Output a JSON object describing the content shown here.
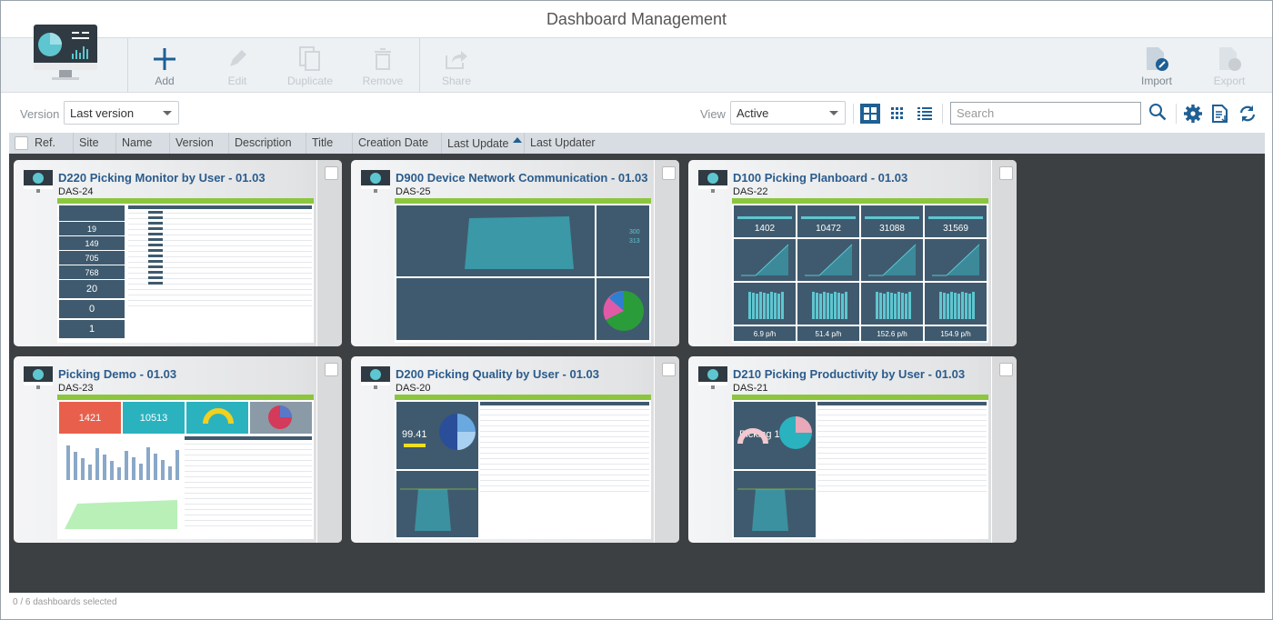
{
  "title": "Dashboard Management",
  "toolbar": {
    "buttons": [
      {
        "label": "Add",
        "icon": "plus-icon",
        "enabled": true
      },
      {
        "label": "Edit",
        "icon": "pencil-icon",
        "enabled": false
      },
      {
        "label": "Duplicate",
        "icon": "duplicate-icon",
        "enabled": false
      },
      {
        "label": "Remove",
        "icon": "trash-icon",
        "enabled": false
      },
      {
        "label": "Share",
        "icon": "share-icon",
        "enabled": false
      },
      {
        "label": "Import",
        "icon": "import-icon",
        "enabled": true
      },
      {
        "label": "Export",
        "icon": "export-icon",
        "enabled": false
      }
    ]
  },
  "filters": {
    "version_label": "Version",
    "version_value": "Last version",
    "view_label": "View",
    "view_value": "Active",
    "search_placeholder": "Search",
    "active_view": "tiles"
  },
  "columns": [
    "Ref.",
    "Site",
    "Name",
    "Version",
    "Description",
    "Title",
    "Creation Date",
    "Last Update",
    "Last Updater"
  ],
  "sort": {
    "column": "Last Update",
    "direction": "asc"
  },
  "colors": {
    "accent": "#1f5f94",
    "grid_bg": "#3d4043",
    "title": "#2b5c8c",
    "thumb_header": "#8cc63f",
    "panel": "#3f5a6e"
  },
  "dashboards": [
    {
      "title": "D220 Picking Monitor by User - 01.03",
      "ref": "DAS-24",
      "kind": "monitor",
      "values": [
        "19",
        "149",
        "705",
        "768",
        "20",
        "0",
        "1"
      ]
    },
    {
      "title": "D900 Device Network Communication - 01.03",
      "ref": "DAS-25",
      "kind": "network",
      "values": [
        "300",
        "313"
      ]
    },
    {
      "title": "D100 Picking Planboard - 01.03",
      "ref": "DAS-22",
      "kind": "planboard",
      "values": [
        "1402",
        "10472",
        "31088",
        "31569",
        "6.9 p/h",
        "51.4 p/h",
        "152.6 p/h",
        "154.9 p/h"
      ]
    },
    {
      "title": "Picking Demo - 01.03",
      "ref": "DAS-23",
      "kind": "demo",
      "values": [
        "1421",
        "10513"
      ]
    },
    {
      "title": "D200 Picking Quality by User - 01.03",
      "ref": "DAS-20",
      "kind": "quality",
      "values": [
        "99.41"
      ]
    },
    {
      "title": "D210 Picking Productivity by User - 01.03",
      "ref": "DAS-21",
      "kind": "productivity",
      "values": [
        "Picking 1"
      ]
    }
  ],
  "footer": "0 / 6 dashboards selected"
}
